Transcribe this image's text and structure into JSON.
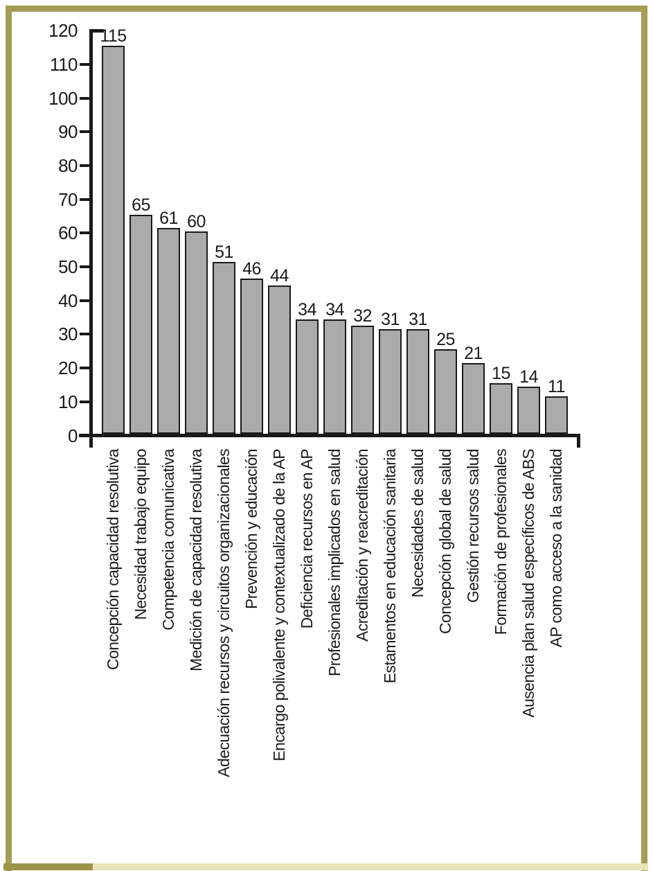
{
  "chart_data": {
    "type": "bar",
    "categories": [
      "Concepción capacidad resolutiva",
      "Necesidad trabajo equipo",
      "Competencia comunicativa",
      "Medición de capacidad resolutiva",
      "Adecuación recursos y circuitos organizacionales",
      "Prevención y educación",
      "Encargo polivalente y contextualizado de la AP",
      "Deficiencia recursos en AP",
      "Profesionales implicados en salud",
      "Acreditación y reacreditación",
      "Estamentos en educación sanitaria",
      "Necesidades de salud",
      "Concepción global de salud",
      "Gestión recursos salud",
      "Formación de profesionales",
      "Ausencia plan salud específicos de ABS",
      "AP como acceso a la sanidad"
    ],
    "values": [
      115,
      65,
      61,
      60,
      51,
      46,
      44,
      34,
      34,
      32,
      31,
      31,
      25,
      21,
      15,
      14,
      11
    ],
    "title": "",
    "xlabel": "",
    "ylabel": "",
    "ylim": [
      0,
      120
    ],
    "yticks": [
      0,
      10,
      20,
      30,
      40,
      50,
      60,
      70,
      80,
      90,
      100,
      110,
      120
    ],
    "grid": false,
    "legend": false,
    "bar_labels_shown": true,
    "bar_fill_color": "#ABABAB",
    "bar_border_color": "#1A1A1A",
    "axis_color": "#1A1A1A",
    "text_color": "#1A1A1A"
  },
  "frame": {
    "border_color": "#A69C55",
    "bottom_strip_left_color": "#9C934B",
    "bottom_strip_right_color": "#E7E3BA",
    "background_color": "#FFFFFF"
  }
}
